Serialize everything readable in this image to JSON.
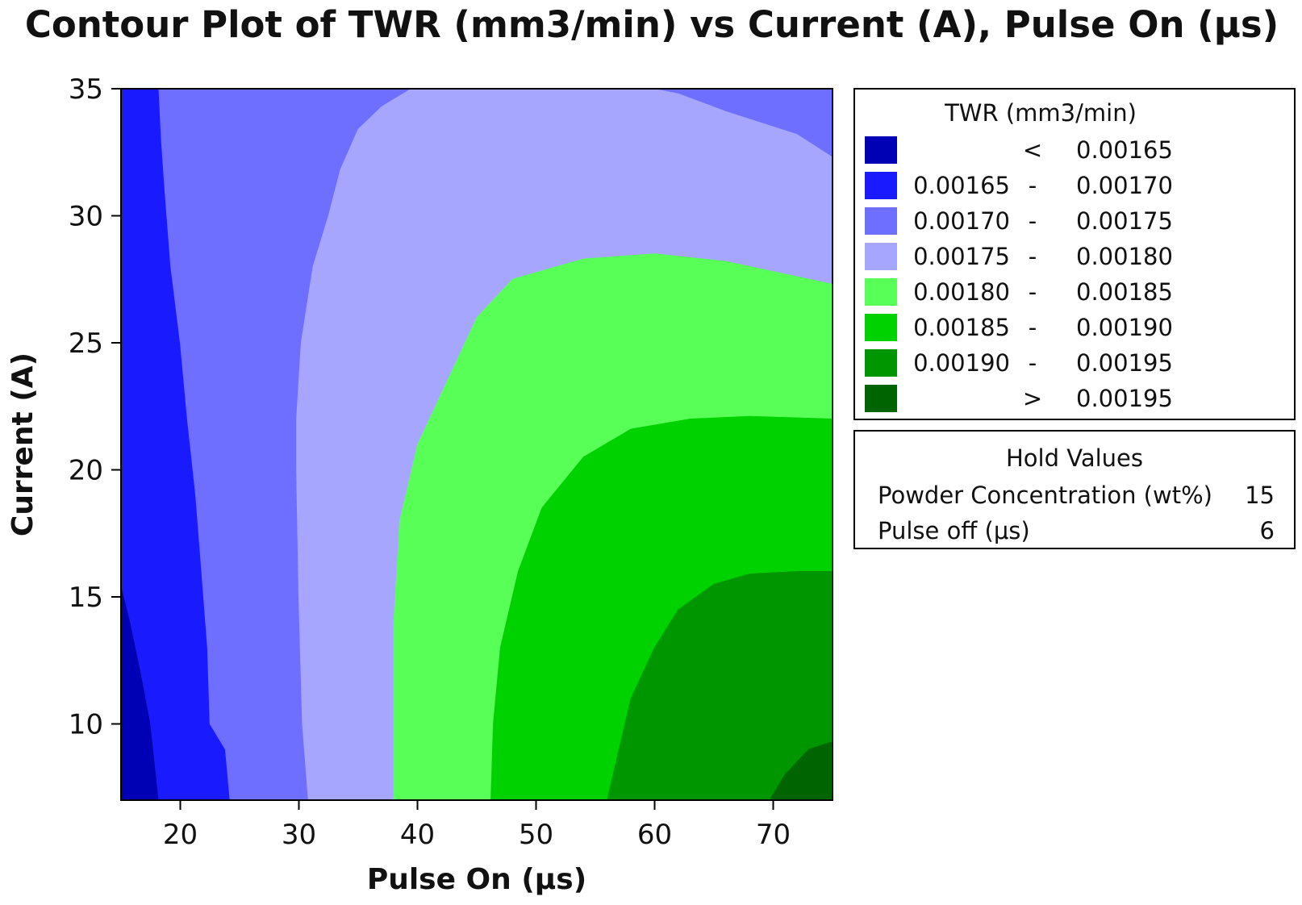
{
  "chart_data": {
    "type": "contour",
    "title": "Contour Plot of TWR (mm3/min) vs Current (A), Pulse On (μs)",
    "xlabel": "Pulse On (μs)",
    "ylabel": "Current (A)",
    "xlim": [
      15,
      75
    ],
    "ylim": [
      7,
      35
    ],
    "xticks": [
      20,
      30,
      40,
      50,
      60,
      70
    ],
    "yticks": [
      10,
      15,
      20,
      25,
      30,
      35
    ],
    "legend": {
      "title": "TWR (mm3/min)",
      "placement": "right",
      "levels": [
        {
          "low": "",
          "sep": "<",
          "high": "0.00165",
          "color": "#0000b4"
        },
        {
          "low": "0.00165",
          "sep": "-",
          "high": "0.00170",
          "color": "#1a1aff"
        },
        {
          "low": "0.00170",
          "sep": "-",
          "high": "0.00175",
          "color": "#6e6eff"
        },
        {
          "low": "0.00175",
          "sep": "-",
          "high": "0.00180",
          "color": "#a6a6ff"
        },
        {
          "low": "0.00180",
          "sep": "-",
          "high": "0.00185",
          "color": "#57ff57"
        },
        {
          "low": "0.00185",
          "sep": "-",
          "high": "0.00190",
          "color": "#00d200"
        },
        {
          "low": "0.00190",
          "sep": "-",
          "high": "0.00195",
          "color": "#009600"
        },
        {
          "low": "",
          "sep": ">",
          "high": "0.00195",
          "color": "#006400"
        }
      ]
    },
    "hold_values": {
      "title": "Hold Values",
      "rows": [
        {
          "label": "Powder Concentration (wt%)",
          "value": "15"
        },
        {
          "label": "Pulse off (μs)",
          "value": "6"
        }
      ]
    },
    "regions": [
      {
        "level": 0,
        "points": [
          [
            15,
            7
          ],
          [
            18.2,
            7
          ],
          [
            17.5,
            10
          ],
          [
            16.7,
            12
          ],
          [
            15.8,
            14
          ],
          [
            15,
            15.5
          ]
        ]
      },
      {
        "level": 1,
        "points": [
          [
            15,
            15.5
          ],
          [
            15.8,
            14
          ],
          [
            16.7,
            12
          ],
          [
            17.5,
            10
          ],
          [
            18.2,
            7
          ],
          [
            24.2,
            7
          ],
          [
            23.8,
            9
          ],
          [
            22.5,
            10
          ],
          [
            22.3,
            13
          ],
          [
            21.8,
            16
          ],
          [
            21.3,
            19
          ],
          [
            20.6,
            22
          ],
          [
            20,
            25
          ],
          [
            19.2,
            28
          ],
          [
            18.7,
            31
          ],
          [
            18.4,
            33
          ],
          [
            18.2,
            35
          ],
          [
            15,
            35
          ]
        ]
      },
      {
        "level": 2,
        "points": [
          [
            18.2,
            35
          ],
          [
            18.4,
            33
          ],
          [
            18.7,
            31
          ],
          [
            19.2,
            28
          ],
          [
            20,
            25
          ],
          [
            20.6,
            22
          ],
          [
            21.3,
            19
          ],
          [
            21.8,
            16
          ],
          [
            22.3,
            13
          ],
          [
            22.5,
            10
          ],
          [
            23.8,
            9
          ],
          [
            24.2,
            7
          ],
          [
            30.8,
            7
          ],
          [
            30.3,
            10
          ],
          [
            30,
            15
          ],
          [
            29.8,
            20
          ],
          [
            29.8,
            22
          ],
          [
            30.2,
            25
          ],
          [
            31.2,
            28
          ],
          [
            32.5,
            30
          ],
          [
            33.5,
            31.8
          ],
          [
            35,
            33.4
          ],
          [
            37,
            34.3
          ],
          [
            39.5,
            35
          ]
        ]
      },
      {
        "level": 2,
        "points": [
          [
            59.8,
            35
          ],
          [
            75,
            35
          ],
          [
            75,
            32.3
          ],
          [
            72,
            33.2
          ],
          [
            66,
            34.1
          ],
          [
            62,
            34.8
          ]
        ]
      },
      {
        "level": 3,
        "points": [
          [
            39.5,
            35
          ],
          [
            37,
            34.3
          ],
          [
            35,
            33.4
          ],
          [
            33.5,
            31.8
          ],
          [
            32.5,
            30
          ],
          [
            31.2,
            28
          ],
          [
            30.2,
            25
          ],
          [
            29.8,
            22
          ],
          [
            29.8,
            20
          ],
          [
            30,
            15
          ],
          [
            30.3,
            10
          ],
          [
            30.8,
            7
          ],
          [
            38,
            7
          ],
          [
            38,
            14
          ],
          [
            38.5,
            18
          ],
          [
            40,
            21
          ],
          [
            43,
            24
          ],
          [
            45,
            26
          ],
          [
            48,
            27.5
          ],
          [
            54,
            28.3
          ],
          [
            60,
            28.5
          ],
          [
            66,
            28.2
          ],
          [
            72,
            27.6
          ],
          [
            75,
            27.3
          ],
          [
            75,
            32.3
          ],
          [
            72,
            33.2
          ],
          [
            66,
            34.1
          ],
          [
            62,
            34.8
          ],
          [
            59.8,
            35
          ]
        ]
      },
      {
        "level": 4,
        "points": [
          [
            38,
            7
          ],
          [
            46.2,
            7
          ],
          [
            46.4,
            10
          ],
          [
            47,
            13
          ],
          [
            48.5,
            16
          ],
          [
            50.5,
            18.5
          ],
          [
            54,
            20.5
          ],
          [
            58,
            21.6
          ],
          [
            63,
            22
          ],
          [
            68,
            22.1
          ],
          [
            75,
            22
          ],
          [
            75,
            27.3
          ],
          [
            72,
            27.6
          ],
          [
            66,
            28.2
          ],
          [
            60,
            28.5
          ],
          [
            54,
            28.3
          ],
          [
            48,
            27.5
          ],
          [
            45,
            26
          ],
          [
            43,
            24
          ],
          [
            40,
            21
          ],
          [
            38.5,
            18
          ],
          [
            38,
            14
          ]
        ]
      },
      {
        "level": 5,
        "points": [
          [
            46.2,
            7
          ],
          [
            56,
            7
          ],
          [
            57,
            9
          ],
          [
            58,
            11
          ],
          [
            60,
            13
          ],
          [
            62,
            14.5
          ],
          [
            65,
            15.5
          ],
          [
            68,
            15.9
          ],
          [
            72,
            16
          ],
          [
            75,
            16
          ],
          [
            75,
            22
          ],
          [
            68,
            22.1
          ],
          [
            63,
            22
          ],
          [
            58,
            21.6
          ],
          [
            54,
            20.5
          ],
          [
            50.5,
            18.5
          ],
          [
            48.5,
            16
          ],
          [
            47,
            13
          ],
          [
            46.4,
            10
          ]
        ]
      },
      {
        "level": 6,
        "points": [
          [
            56,
            7
          ],
          [
            69.7,
            7
          ],
          [
            71,
            8
          ],
          [
            73,
            9
          ],
          [
            75,
            9.3
          ],
          [
            75,
            16
          ],
          [
            72,
            16
          ],
          [
            68,
            15.9
          ],
          [
            65,
            15.5
          ],
          [
            62,
            14.5
          ],
          [
            60,
            13
          ],
          [
            58,
            11
          ],
          [
            57,
            9
          ]
        ]
      },
      {
        "level": 7,
        "points": [
          [
            69.7,
            7
          ],
          [
            75,
            7
          ],
          [
            75,
            9.3
          ],
          [
            73,
            9
          ],
          [
            71,
            8
          ]
        ]
      }
    ]
  }
}
